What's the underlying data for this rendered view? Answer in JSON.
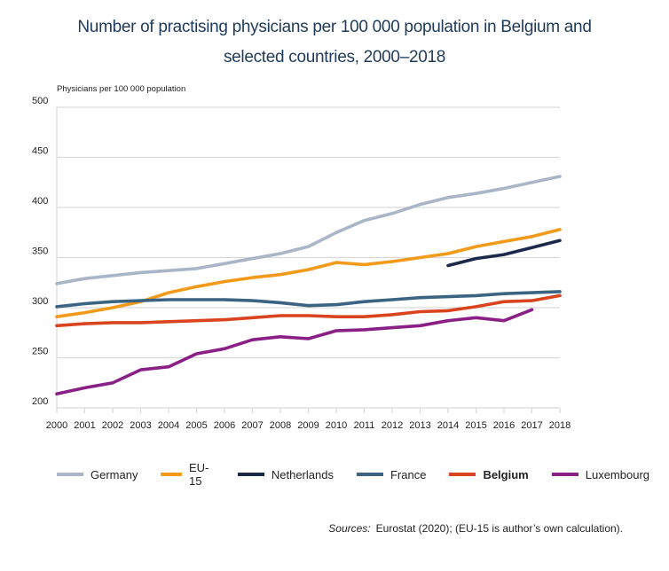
{
  "title": {
    "line1": "Number of practising physicians per 100 000 population in Belgium and",
    "line2": "selected countries, 2000–2018"
  },
  "source": {
    "label": "Sources:",
    "text": "Eurostat (2020); (EU-15 is author’s own calculation)."
  },
  "chart_data": {
    "type": "line",
    "title": "Number of practising physicians per 100 000 population in Belgium and selected countries, 2000–2018",
    "xlabel": "",
    "ylabel": "Physicians per 100 000 population",
    "ylim": [
      200,
      500
    ],
    "yticks": [
      200,
      250,
      300,
      350,
      400,
      450,
      500
    ],
    "grid": true,
    "legend_position": "bottom",
    "x": [
      "2000",
      "2001",
      "2002",
      "2003",
      "2004",
      "2005",
      "2006",
      "2007",
      "2008",
      "2009",
      "2010",
      "2011",
      "2012",
      "2013",
      "2014",
      "2015",
      "2016",
      "2017",
      "2018"
    ],
    "series": [
      {
        "name": "Germany",
        "color": "#a9b6c8",
        "bold": false,
        "values": [
          324,
          329,
          332,
          335,
          337,
          339,
          344,
          349,
          354,
          361,
          375,
          387,
          394,
          403,
          410,
          414,
          419,
          425,
          431
        ]
      },
      {
        "name": "EU-15",
        "color": "#f39a1b",
        "bold": false,
        "values": [
          291,
          295,
          300,
          306,
          315,
          321,
          326,
          330,
          333,
          338,
          345,
          343,
          346,
          350,
          354,
          361,
          366,
          371,
          378
        ]
      },
      {
        "name": "Netherlands",
        "color": "#1b2a4a",
        "bold": false,
        "values": [
          null,
          null,
          null,
          null,
          null,
          null,
          null,
          null,
          null,
          null,
          null,
          null,
          null,
          null,
          342,
          349,
          353,
          360,
          367
        ]
      },
      {
        "name": "France",
        "color": "#3a6482",
        "bold": false,
        "values": [
          301,
          304,
          306,
          307,
          308,
          308,
          308,
          307,
          305,
          302,
          303,
          306,
          308,
          310,
          311,
          312,
          314,
          315,
          316
        ]
      },
      {
        "name": "Belgium",
        "color": "#d9441f",
        "bold": true,
        "values": [
          282,
          284,
          285,
          285,
          286,
          287,
          288,
          290,
          292,
          292,
          291,
          291,
          293,
          296,
          297,
          301,
          306,
          307,
          312
        ]
      },
      {
        "name": "Luxembourg",
        "color": "#8a1f86",
        "bold": false,
        "values": [
          214,
          220,
          225,
          238,
          241,
          254,
          259,
          268,
          271,
          269,
          277,
          278,
          280,
          282,
          287,
          290,
          287,
          298,
          null
        ]
      }
    ]
  }
}
